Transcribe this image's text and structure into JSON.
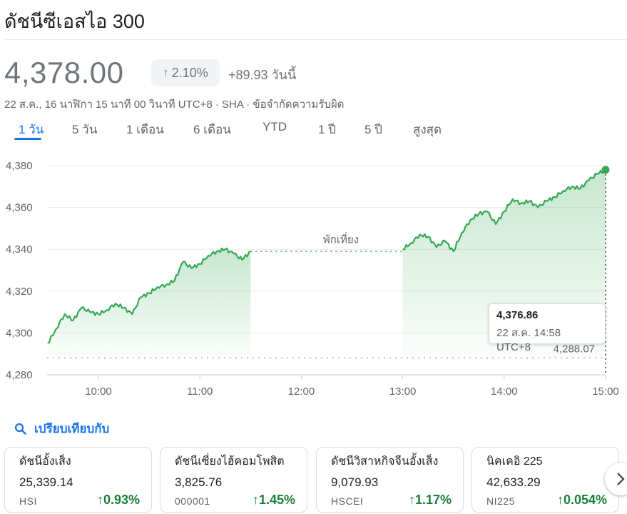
{
  "header": {
    "title": "ดัชนีซีเอสไอ 300"
  },
  "quote": {
    "price": "4,378.00",
    "change_pct": "2.10%",
    "change_abs": "+89.93 วันนี้",
    "meta": "22 ส.ค., 16 นาฬิกา 15 นาที 00 วินาที UTC+8 · SHA · ข้อจำกัดความรับผิด"
  },
  "tabs": [
    {
      "label": "1 วัน",
      "active": true
    },
    {
      "label": "5 วัน"
    },
    {
      "label": "1 เดือน"
    },
    {
      "label": "6 เดือน"
    },
    {
      "label": "YTD"
    },
    {
      "label": "1 ปี"
    },
    {
      "label": "5 ปี"
    },
    {
      "label": "สูงสุด"
    }
  ],
  "chart_data": {
    "type": "line",
    "x_ticks": [
      "10:00",
      "11:00",
      "12:00",
      "13:00",
      "14:00",
      "15:00"
    ],
    "y_ticks": [
      "4,280",
      "4,300",
      "4,320",
      "4,340",
      "4,360",
      "4,380"
    ],
    "ylim": [
      4280,
      4380
    ],
    "previous_close": 4288.07,
    "previous_close_label": "4,288.07",
    "break_label": "พักเที่ยง",
    "morning_session": [
      [
        "09:30",
        4295
      ],
      [
        "09:35",
        4302
      ],
      [
        "09:40",
        4309
      ],
      [
        "09:45",
        4306
      ],
      [
        "09:50",
        4312
      ],
      [
        "09:55",
        4310
      ],
      [
        "10:00",
        4309
      ],
      [
        "10:05",
        4311
      ],
      [
        "10:10",
        4314
      ],
      [
        "10:15",
        4312
      ],
      [
        "10:20",
        4309
      ],
      [
        "10:25",
        4317
      ],
      [
        "10:30",
        4319
      ],
      [
        "10:35",
        4322
      ],
      [
        "10:40",
        4323
      ],
      [
        "10:45",
        4325
      ],
      [
        "10:50",
        4334
      ],
      [
        "10:55",
        4331
      ],
      [
        "11:00",
        4333
      ],
      [
        "11:05",
        4337
      ],
      [
        "11:10",
        4339
      ],
      [
        "11:15",
        4340
      ],
      [
        "11:20",
        4338
      ],
      [
        "11:25",
        4335
      ],
      [
        "11:30",
        4339
      ]
    ],
    "afternoon_session": [
      [
        "13:00",
        4340
      ],
      [
        "13:05",
        4343
      ],
      [
        "13:10",
        4347
      ],
      [
        "13:15",
        4346
      ],
      [
        "13:20",
        4341
      ],
      [
        "13:25",
        4344
      ],
      [
        "13:30",
        4339
      ],
      [
        "13:35",
        4348
      ],
      [
        "13:40",
        4354
      ],
      [
        "13:45",
        4357
      ],
      [
        "13:50",
        4358
      ],
      [
        "13:55",
        4352
      ],
      [
        "14:00",
        4358
      ],
      [
        "14:05",
        4364
      ],
      [
        "14:10",
        4362
      ],
      [
        "14:15",
        4363
      ],
      [
        "14:20",
        4360
      ],
      [
        "14:25",
        4363
      ],
      [
        "14:30",
        4365
      ],
      [
        "14:35",
        4368
      ],
      [
        "14:40",
        4370
      ],
      [
        "14:45",
        4369
      ],
      [
        "14:50",
        4373
      ],
      [
        "14:55",
        4376
      ],
      [
        "15:00",
        4378
      ]
    ],
    "color": "#34a853",
    "grid": true
  },
  "tooltip": {
    "value": "4,376.86",
    "time": "22 ส.ค. 14:58 UTC+8"
  },
  "compare": {
    "label": "เปรียบเทียบกับ",
    "icon": "search-icon"
  },
  "related": [
    {
      "name": "ดัชนีอั้งเส็ง",
      "value": "25,339.14",
      "symbol": "HSI",
      "change": "0.93%"
    },
    {
      "name": "ดัชนีเซี่ยงไฮ้คอมโพสิต",
      "value": "3,825.76",
      "symbol": "000001",
      "change": "1.45%"
    },
    {
      "name": "ดัชนีวิสาหกิจจีนอั้งเส็ง",
      "value": "9,079.93",
      "symbol": "HSCEI",
      "change": "1.17%"
    },
    {
      "name": "นิคเคอิ 225",
      "value": "42,633.29",
      "symbol": "NI225",
      "change": "0.054%"
    }
  ],
  "colors": {
    "accent": "#1a73e8",
    "positive": "#188038",
    "line": "#34a853"
  }
}
